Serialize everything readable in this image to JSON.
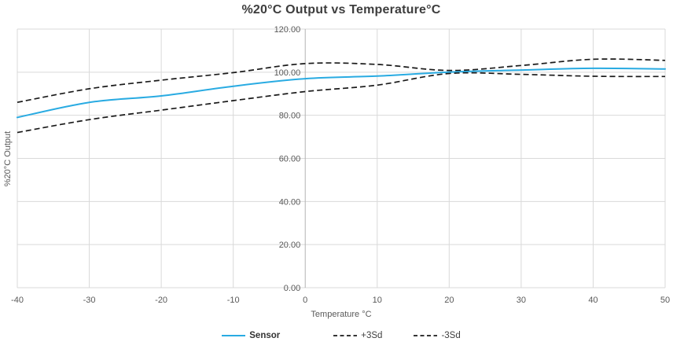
{
  "title": "%20°C Output vs Temperature°C",
  "chart_data": {
    "type": "line",
    "title": "%20°C Output vs Temperature°C",
    "xlabel": "Temperature °C",
    "ylabel": "%20°C Output",
    "xlim": [
      -40,
      50
    ],
    "ylim": [
      0,
      120
    ],
    "grid": true,
    "legend_position": "bottom",
    "x_ticks": [
      -40,
      -30,
      -20,
      -10,
      0,
      10,
      20,
      30,
      40,
      50
    ],
    "x_tick_labels": [
      "-40",
      "-30",
      "-20",
      "-10",
      "0",
      "10",
      "20",
      "30",
      "40",
      "50"
    ],
    "y_ticks": [
      0,
      20,
      40,
      60,
      80,
      100,
      120
    ],
    "y_tick_labels": [
      "0.00",
      "20.00",
      "40.00",
      "60.00",
      "80.00",
      "100.00",
      "120.00"
    ],
    "x": [
      -40,
      -30,
      -20,
      -10,
      0,
      10,
      20,
      30,
      40,
      50
    ],
    "series": [
      {
        "name": "Sensor",
        "style": "solid",
        "color": "#29ABE2",
        "values": [
          79.0,
          86.0,
          89.0,
          93.5,
          97.0,
          98.2,
          100.0,
          101.0,
          101.8,
          101.5
        ]
      },
      {
        "name": "+3Sd",
        "style": "dashed",
        "color": "#1a1a1a",
        "values": [
          86.0,
          92.3,
          96.3,
          99.8,
          104.0,
          103.6,
          100.8,
          103.1,
          106.0,
          105.5
        ]
      },
      {
        "name": "-3Sd",
        "style": "dashed",
        "color": "#1a1a1a",
        "values": [
          72.0,
          78.0,
          82.4,
          86.8,
          91.0,
          94.0,
          99.4,
          99.0,
          98.1,
          98.0
        ]
      }
    ],
    "colors": {
      "grid": "#d9d9d9",
      "zero_axis": "#b3b3b3",
      "tick_text": "#595959",
      "title_text": "#3d3d3d",
      "legend_text": "#404040"
    }
  }
}
